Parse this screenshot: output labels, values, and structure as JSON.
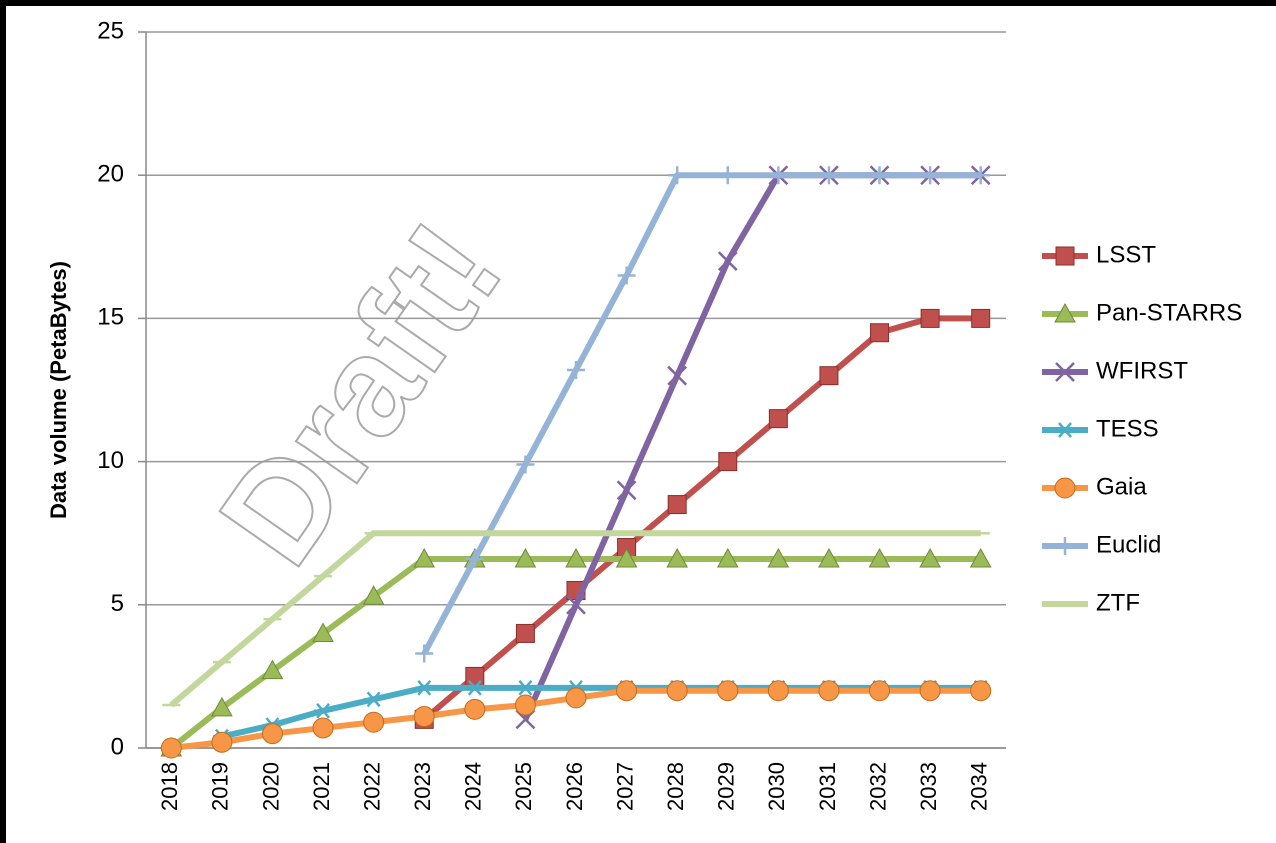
{
  "chart_data": {
    "type": "line",
    "y_label": "Data volume (PetaBytes)",
    "watermark": "Draft!",
    "categories": [
      "2018",
      "2019",
      "2020",
      "2021",
      "2022",
      "2023",
      "2024",
      "2025",
      "2026",
      "2027",
      "2028",
      "2029",
      "2030",
      "2031",
      "2032",
      "2033",
      "2034"
    ],
    "series": [
      {
        "name": "LSST",
        "color": "#c0504d",
        "marker": "square",
        "values": [
          null,
          null,
          null,
          null,
          null,
          1.0,
          2.5,
          4.0,
          5.5,
          7.0,
          8.5,
          10,
          11.5,
          13,
          14.5,
          15,
          15
        ]
      },
      {
        "name": "Pan-STARRS",
        "color": "#9bbb59",
        "marker": "triangle",
        "values": [
          0,
          1.4,
          2.7,
          4.0,
          5.3,
          6.6,
          6.6,
          6.6,
          6.6,
          6.6,
          6.6,
          6.6,
          6.6,
          6.6,
          6.6,
          6.6,
          6.6
        ]
      },
      {
        "name": "WFIRST",
        "color": "#8064a2",
        "marker": "x",
        "values": [
          null,
          null,
          null,
          null,
          null,
          null,
          null,
          1.0,
          5.0,
          9.0,
          13,
          17,
          20,
          20,
          20,
          20,
          20
        ]
      },
      {
        "name": "TESS",
        "color": "#4bacc6",
        "marker": "asterisk",
        "values": [
          null,
          0.4,
          0.8,
          1.3,
          1.7,
          2.1,
          2.1,
          2.1,
          2.1,
          2.1,
          2.1,
          2.1,
          2.1,
          2.1,
          2.1,
          2.1,
          2.1
        ]
      },
      {
        "name": "Gaia",
        "color": "#f79646",
        "marker": "circle",
        "values": [
          0,
          0.2,
          0.5,
          0.7,
          0.9,
          1.1,
          1.35,
          1.5,
          1.75,
          2.0,
          2.0,
          2.0,
          2.0,
          2.0,
          2.0,
          2.0,
          2.0
        ]
      },
      {
        "name": "Euclid",
        "color": "#95b3d7",
        "marker": "plus",
        "values": [
          null,
          null,
          null,
          null,
          null,
          3.3,
          6.6,
          9.9,
          13.2,
          16.5,
          20,
          20,
          20,
          20,
          20,
          20,
          20
        ]
      },
      {
        "name": "ZTF",
        "color": "#c3d69b",
        "marker": "dash",
        "values": [
          1.5,
          3.0,
          4.5,
          6.0,
          7.5,
          7.5,
          7.5,
          7.5,
          7.5,
          7.5,
          7.5,
          7.5,
          7.5,
          7.5,
          7.5,
          7.5,
          7.5
        ]
      }
    ],
    "ylim": [
      0,
      25
    ],
    "yticks": [
      0,
      5,
      10,
      15,
      20,
      25
    ],
    "grid": true,
    "legend": "right"
  }
}
